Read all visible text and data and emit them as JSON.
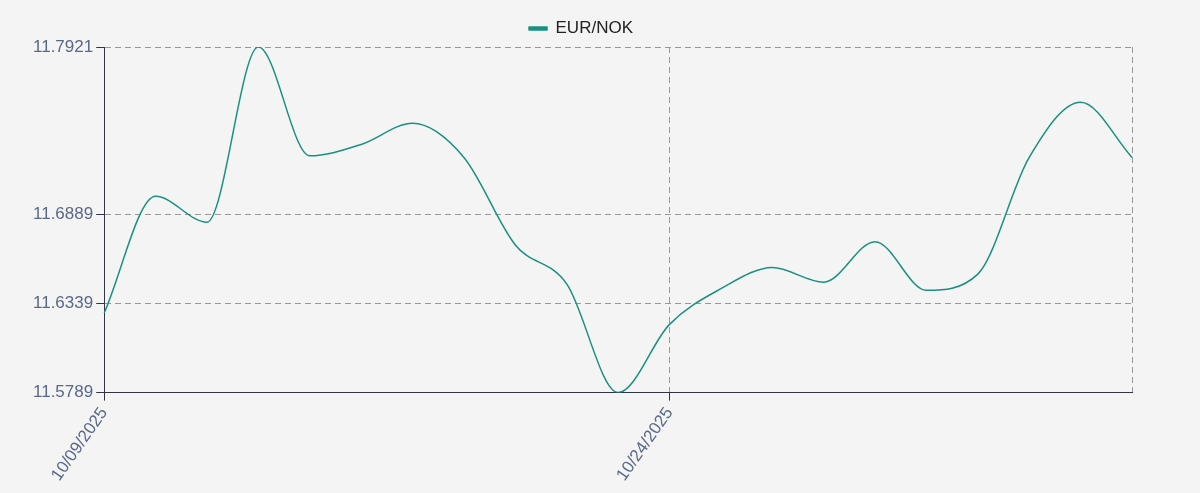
{
  "chart_data": {
    "type": "line",
    "categories": [
      "10/09/2025",
      null,
      null,
      null,
      null,
      null,
      null,
      null,
      null,
      null,
      null,
      "10/24/2025",
      null,
      null,
      null,
      null,
      null,
      null,
      null,
      null,
      null
    ],
    "series": [
      {
        "name": "EUR/NOK",
        "color": "#1a9080",
        "values": [
          11.628,
          11.7,
          11.684,
          11.7921,
          11.725,
          11.732,
          11.745,
          11.724,
          11.67,
          11.646,
          11.5789,
          11.621,
          11.643,
          11.656,
          11.647,
          11.672,
          11.642,
          11.652,
          11.724,
          11.758,
          11.724
        ]
      }
    ],
    "ylim": [
      11.5789,
      11.7921
    ],
    "yticks": [
      11.5789,
      11.6339,
      11.6889,
      11.7921
    ],
    "grid": true,
    "legend": "top"
  }
}
